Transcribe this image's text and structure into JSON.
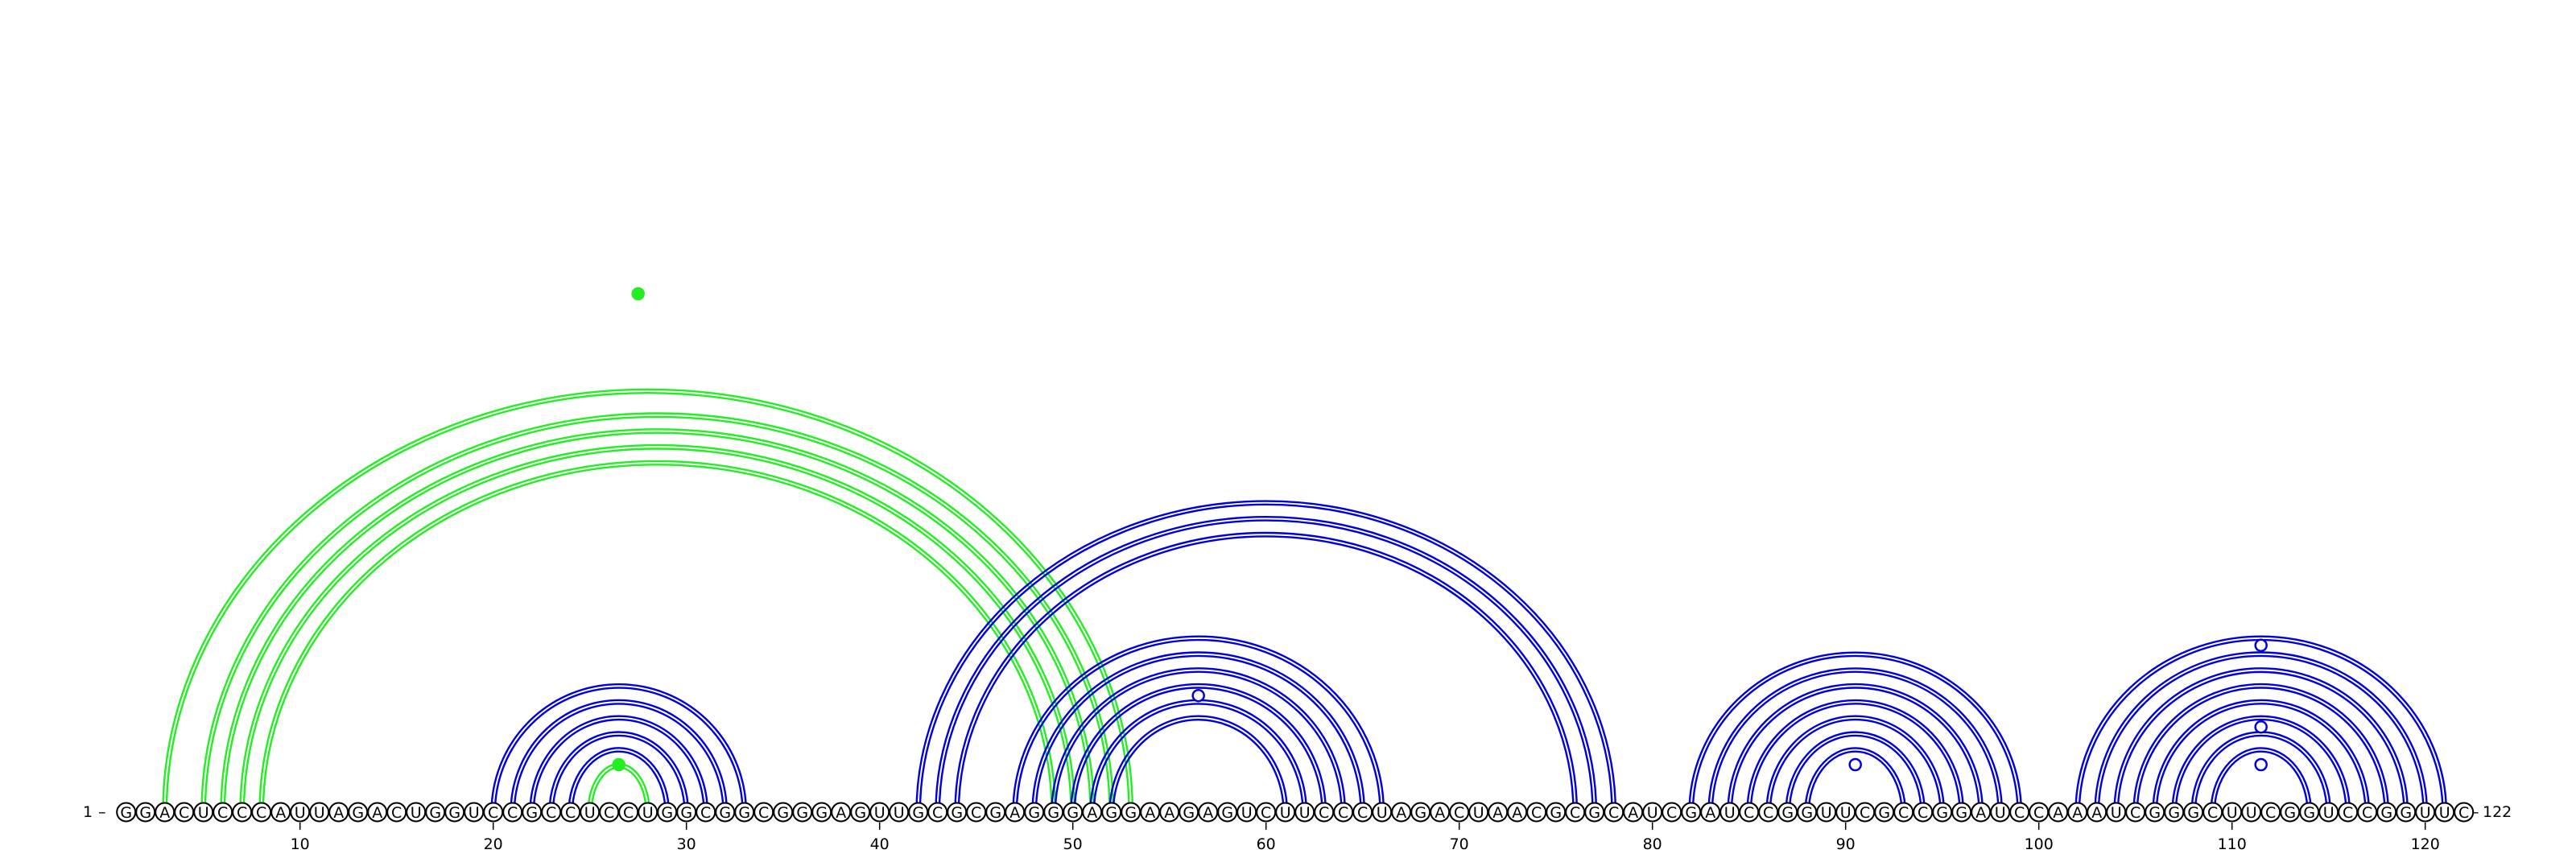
{
  "diagram": {
    "type": "rna-arc-diagram",
    "sequence": "GGACUCCCAUUAGACUGGUCCGCCUCCUGGCGGCGGGAGUUGCGCGAGGGAGGAAGAGUCUUCCCUAGACUAACGCGCAUCGAUCCGGUUCGCCGGAUCCAAAUCGGGCUUCGGUCCGGUUC",
    "start_label": "1",
    "end_label": "122",
    "start_dash": "–",
    "end_dash": "–",
    "ticks": [
      "10",
      "20",
      "30",
      "40",
      "50",
      "60",
      "70",
      "80",
      "90",
      "100",
      "110",
      "120"
    ],
    "tick_positions": [
      10,
      20,
      30,
      40,
      50,
      60,
      70,
      80,
      90,
      100,
      110,
      120
    ],
    "colors": {
      "pseudoknot": "#22ee22",
      "helix": "#0000dd",
      "nucleotide_outline": "#000000"
    },
    "helices": [
      {
        "color": "pseudoknot",
        "pairs": [
          [
            3,
            53
          ],
          [
            5,
            52
          ],
          [
            6,
            51
          ],
          [
            7,
            50
          ],
          [
            8,
            49
          ]
        ]
      },
      {
        "color": "helix",
        "pairs": [
          [
            20,
            33
          ],
          [
            21,
            32
          ],
          [
            22,
            31
          ],
          [
            23,
            30
          ],
          [
            24,
            29
          ]
        ]
      },
      {
        "color": "pseudoknot",
        "pairs": [
          [
            25,
            28
          ]
        ]
      },
      {
        "color": "helix",
        "pairs": [
          [
            42,
            78
          ],
          [
            43,
            77
          ],
          [
            44,
            76
          ]
        ]
      },
      {
        "color": "helix",
        "pairs": [
          [
            47,
            66
          ],
          [
            48,
            65
          ],
          [
            49,
            64
          ],
          [
            50,
            63
          ],
          [
            51,
            62
          ],
          [
            52,
            61
          ]
        ]
      },
      {
        "color": "helix",
        "pairs": [
          [
            82,
            99
          ],
          [
            83,
            98
          ],
          [
            84,
            97
          ],
          [
            85,
            96
          ],
          [
            86,
            95
          ],
          [
            87,
            94
          ],
          [
            88,
            93
          ]
        ]
      },
      {
        "color": "helix",
        "pairs": [
          [
            102,
            121
          ],
          [
            103,
            120
          ],
          [
            104,
            119
          ],
          [
            105,
            118
          ],
          [
            106,
            117
          ],
          [
            107,
            116
          ],
          [
            108,
            115
          ],
          [
            109,
            114
          ]
        ]
      }
    ],
    "markers": [
      {
        "x": 27.5,
        "height": 0.8,
        "filled": true,
        "color": "pseudoknot"
      },
      {
        "x": 26.5,
        "height": 0.05,
        "filled": true,
        "color": "pseudoknot"
      },
      {
        "x": 56.5,
        "height": 0.16,
        "filled": false,
        "color": "helix"
      },
      {
        "x": 90.5,
        "height": 0.05,
        "filled": false,
        "color": "helix"
      },
      {
        "x": 111.5,
        "height": 0.24,
        "filled": false,
        "color": "helix"
      },
      {
        "x": 111.5,
        "height": 0.11,
        "filled": false,
        "color": "helix"
      },
      {
        "x": 111.5,
        "height": 0.05,
        "filled": false,
        "color": "helix"
      }
    ]
  }
}
